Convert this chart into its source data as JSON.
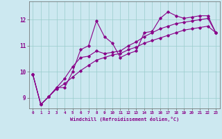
{
  "xlabel": "Windchill (Refroidissement éolien,°C)",
  "bg_color": "#cce8f0",
  "line_color": "#880088",
  "grid_color": "#99cccc",
  "axis_color": "#666666",
  "xlim": [
    -0.5,
    23.5
  ],
  "ylim": [
    8.6,
    12.7
  ],
  "xticks": [
    0,
    1,
    2,
    3,
    4,
    5,
    6,
    7,
    8,
    9,
    10,
    11,
    12,
    13,
    14,
    15,
    16,
    17,
    18,
    19,
    20,
    21,
    22,
    23
  ],
  "yticks": [
    9,
    10,
    11,
    12
  ],
  "series": [
    [
      9.9,
      8.75,
      9.05,
      9.4,
      9.4,
      10.0,
      10.85,
      11.0,
      11.95,
      11.35,
      11.1,
      10.55,
      10.7,
      10.8,
      11.5,
      11.55,
      12.05,
      12.3,
      12.15,
      12.05,
      12.1,
      12.15,
      12.15,
      11.5
    ],
    [
      9.9,
      8.75,
      9.05,
      9.4,
      9.75,
      10.2,
      10.55,
      10.6,
      10.8,
      10.7,
      10.75,
      10.8,
      11.0,
      11.15,
      11.35,
      11.5,
      11.65,
      11.75,
      11.85,
      11.9,
      11.95,
      12.0,
      12.05,
      11.5
    ],
    [
      9.9,
      8.75,
      9.05,
      9.35,
      9.55,
      9.8,
      10.05,
      10.25,
      10.45,
      10.55,
      10.65,
      10.7,
      10.85,
      10.95,
      11.1,
      11.2,
      11.3,
      11.4,
      11.5,
      11.6,
      11.65,
      11.7,
      11.75,
      11.5
    ]
  ]
}
